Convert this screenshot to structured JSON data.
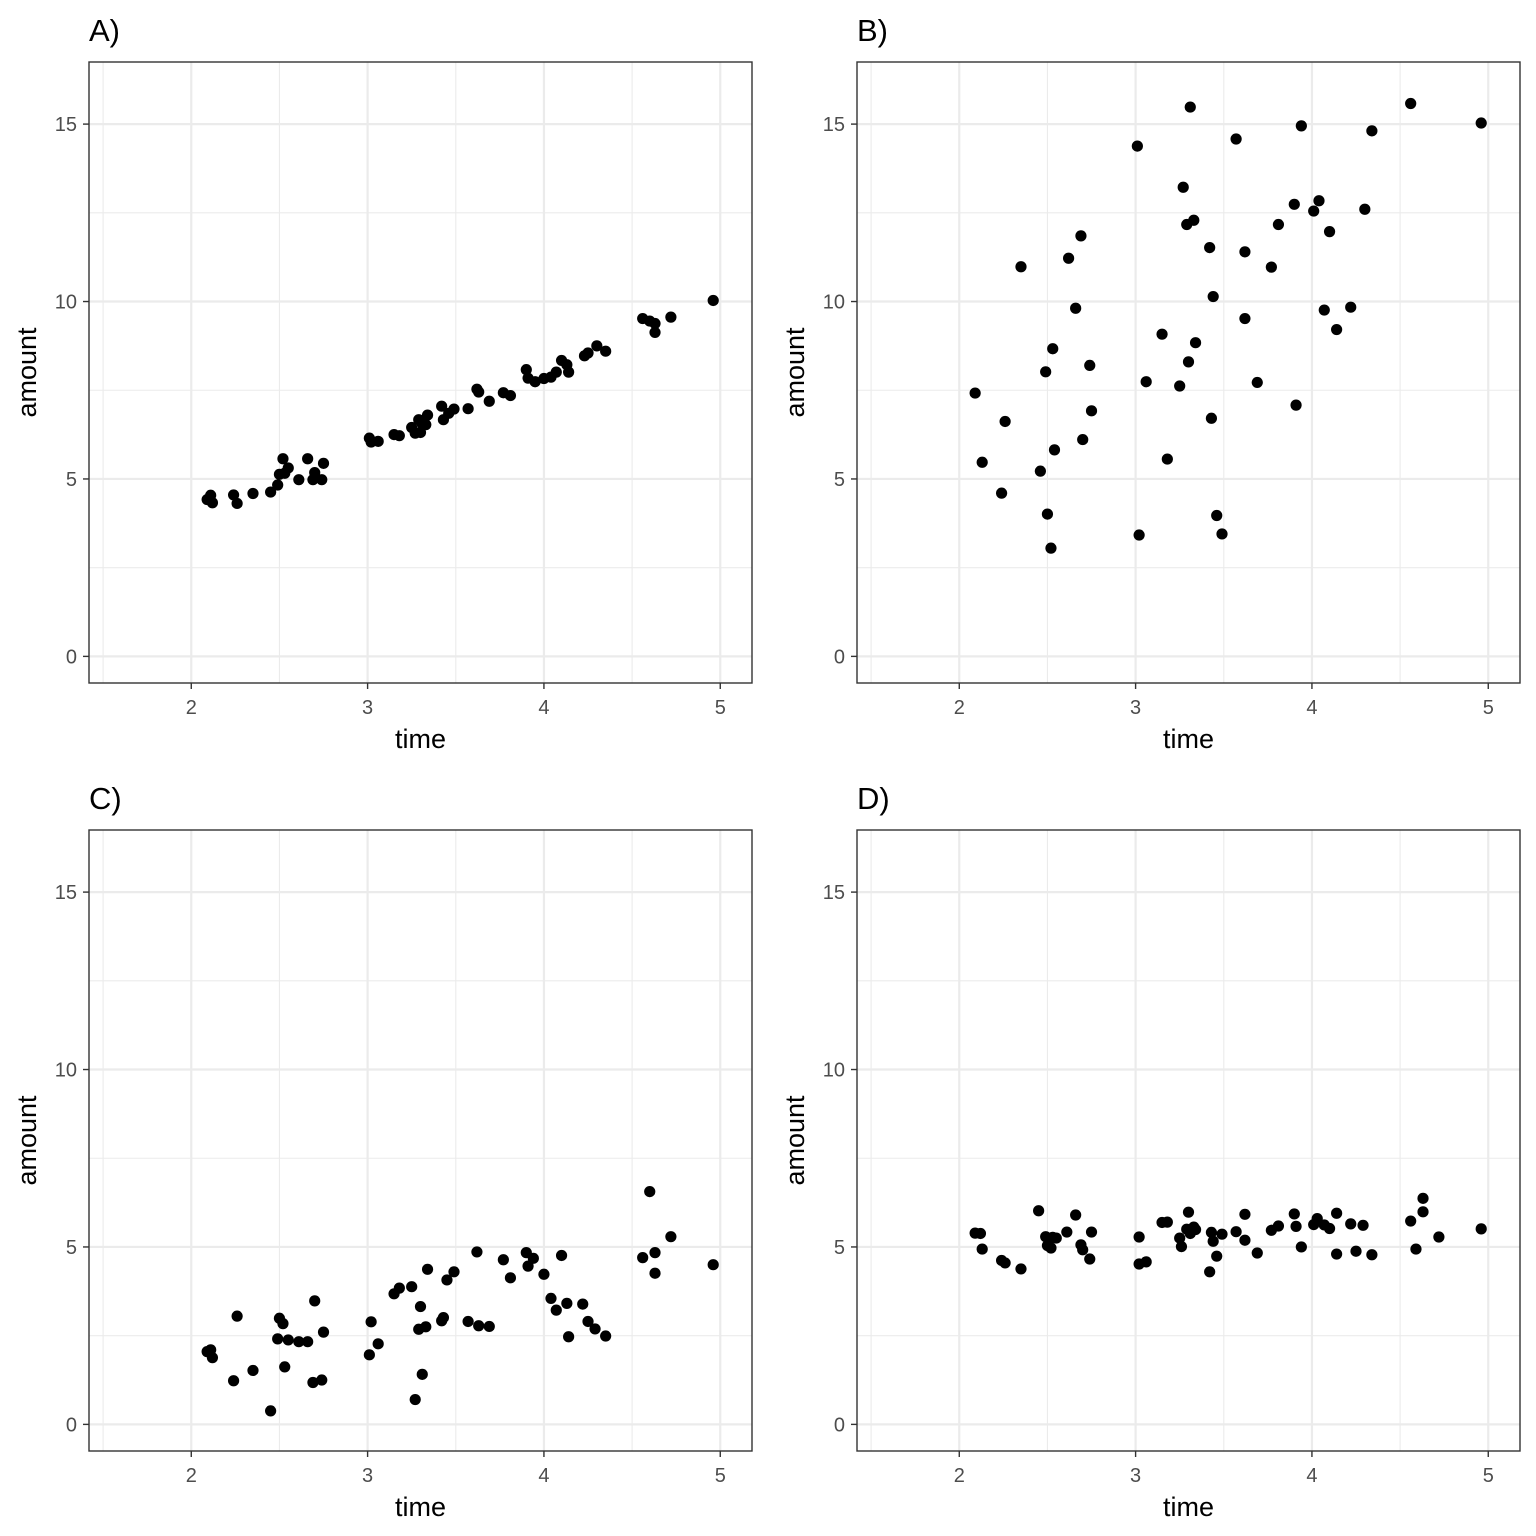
{
  "chart_data": [
    {
      "type": "scatter",
      "title": "A)",
      "xlabel": "time",
      "ylabel": "amount",
      "xlim": [
        1.42,
        5.18
      ],
      "ylim": [
        -0.75,
        16.75
      ],
      "xticks": [
        2,
        3,
        4,
        5
      ],
      "yticks": [
        0,
        5,
        10,
        15
      ],
      "grid": true,
      "points": [
        [
          2.09,
          4.42
        ],
        [
          2.11,
          4.54
        ],
        [
          2.12,
          4.33
        ],
        [
          2.24,
          4.55
        ],
        [
          2.26,
          4.31
        ],
        [
          2.35,
          4.59
        ],
        [
          2.45,
          4.63
        ],
        [
          2.49,
          4.83
        ],
        [
          2.5,
          5.13
        ],
        [
          2.52,
          5.57
        ],
        [
          2.53,
          5.16
        ],
        [
          2.55,
          5.31
        ],
        [
          2.61,
          4.98
        ],
        [
          2.66,
          5.57
        ],
        [
          2.69,
          4.98
        ],
        [
          2.7,
          5.18
        ],
        [
          2.74,
          4.98
        ],
        [
          2.75,
          5.44
        ],
        [
          3.01,
          6.15
        ],
        [
          3.02,
          6.04
        ],
        [
          3.06,
          6.06
        ],
        [
          3.15,
          6.25
        ],
        [
          3.18,
          6.22
        ],
        [
          3.25,
          6.45
        ],
        [
          3.27,
          6.29
        ],
        [
          3.29,
          6.67
        ],
        [
          3.3,
          6.31
        ],
        [
          3.31,
          6.55
        ],
        [
          3.33,
          6.53
        ],
        [
          3.34,
          6.8
        ],
        [
          3.42,
          7.05
        ],
        [
          3.43,
          6.67
        ],
        [
          3.46,
          6.85
        ],
        [
          3.49,
          6.97
        ],
        [
          3.57,
          6.98
        ],
        [
          3.62,
          7.53
        ],
        [
          3.63,
          7.45
        ],
        [
          3.69,
          7.19
        ],
        [
          3.77,
          7.43
        ],
        [
          3.81,
          7.35
        ],
        [
          3.9,
          8.08
        ],
        [
          3.91,
          7.84
        ],
        [
          3.95,
          7.74
        ],
        [
          4.0,
          7.83
        ],
        [
          4.04,
          7.87
        ],
        [
          4.07,
          8.01
        ],
        [
          4.1,
          8.34
        ],
        [
          4.13,
          8.22
        ],
        [
          4.14,
          8.01
        ],
        [
          4.23,
          8.47
        ],
        [
          4.25,
          8.55
        ],
        [
          4.3,
          8.75
        ],
        [
          4.35,
          8.6
        ],
        [
          4.56,
          9.52
        ],
        [
          4.6,
          9.45
        ],
        [
          4.63,
          9.38
        ],
        [
          4.63,
          9.13
        ],
        [
          4.72,
          9.56
        ],
        [
          4.96,
          10.03
        ]
      ]
    },
    {
      "type": "scatter",
      "title": "B)",
      "xlabel": "time",
      "ylabel": "amount",
      "xlim": [
        1.42,
        5.18
      ],
      "ylim": [
        -0.75,
        16.75
      ],
      "xticks": [
        2,
        3,
        4,
        5
      ],
      "yticks": [
        0,
        5,
        10,
        15
      ],
      "grid": true,
      "points": [
        [
          2.09,
          7.42
        ],
        [
          2.13,
          5.47
        ],
        [
          2.24,
          4.6
        ],
        [
          2.26,
          6.62
        ],
        [
          2.35,
          10.98
        ],
        [
          2.46,
          5.22
        ],
        [
          2.49,
          8.02
        ],
        [
          2.5,
          4.01
        ],
        [
          2.52,
          3.05
        ],
        [
          2.53,
          8.67
        ],
        [
          2.54,
          5.82
        ],
        [
          2.62,
          11.22
        ],
        [
          2.66,
          9.81
        ],
        [
          2.69,
          11.85
        ],
        [
          2.7,
          6.11
        ],
        [
          2.74,
          8.2
        ],
        [
          2.75,
          6.92
        ],
        [
          3.01,
          14.38
        ],
        [
          3.02,
          3.42
        ],
        [
          3.06,
          7.74
        ],
        [
          3.15,
          9.08
        ],
        [
          3.18,
          5.56
        ],
        [
          3.25,
          7.62
        ],
        [
          3.27,
          13.22
        ],
        [
          3.29,
          12.17
        ],
        [
          3.3,
          8.3
        ],
        [
          3.31,
          15.48
        ],
        [
          3.33,
          12.29
        ],
        [
          3.34,
          8.84
        ],
        [
          3.42,
          11.52
        ],
        [
          3.43,
          6.71
        ],
        [
          3.44,
          10.14
        ],
        [
          3.46,
          3.97
        ],
        [
          3.49,
          3.45
        ],
        [
          3.57,
          14.58
        ],
        [
          3.62,
          11.4
        ],
        [
          3.62,
          9.52
        ],
        [
          3.69,
          7.72
        ],
        [
          3.77,
          10.97
        ],
        [
          3.81,
          12.17
        ],
        [
          3.9,
          12.74
        ],
        [
          3.91,
          7.08
        ],
        [
          3.94,
          14.95
        ],
        [
          4.01,
          12.55
        ],
        [
          4.04,
          12.84
        ],
        [
          4.07,
          9.76
        ],
        [
          4.1,
          11.97
        ],
        [
          4.14,
          9.21
        ],
        [
          4.22,
          9.84
        ],
        [
          4.3,
          12.6
        ],
        [
          4.34,
          14.81
        ],
        [
          4.56,
          15.58
        ],
        [
          4.96,
          15.03
        ]
      ]
    },
    {
      "type": "scatter",
      "title": "C)",
      "xlabel": "time",
      "ylabel": "amount",
      "xlim": [
        1.42,
        5.18
      ],
      "ylim": [
        -0.75,
        16.75
      ],
      "xticks": [
        2,
        3,
        4,
        5
      ],
      "yticks": [
        0,
        5,
        10,
        15
      ],
      "grid": true,
      "points": [
        [
          2.09,
          2.05
        ],
        [
          2.11,
          2.1
        ],
        [
          2.12,
          1.88
        ],
        [
          2.24,
          1.23
        ],
        [
          2.26,
          3.05
        ],
        [
          2.35,
          1.52
        ],
        [
          2.45,
          0.38
        ],
        [
          2.49,
          2.41
        ],
        [
          2.5,
          2.99
        ],
        [
          2.52,
          2.84
        ],
        [
          2.53,
          1.62
        ],
        [
          2.55,
          2.38
        ],
        [
          2.61,
          2.33
        ],
        [
          2.66,
          2.33
        ],
        [
          2.69,
          1.18
        ],
        [
          2.7,
          3.48
        ],
        [
          2.74,
          1.25
        ],
        [
          2.75,
          2.6
        ],
        [
          3.01,
          1.96
        ],
        [
          3.02,
          2.89
        ],
        [
          3.06,
          2.27
        ],
        [
          3.15,
          3.68
        ],
        [
          3.18,
          3.84
        ],
        [
          3.25,
          3.88
        ],
        [
          3.27,
          0.7
        ],
        [
          3.29,
          2.68
        ],
        [
          3.3,
          3.32
        ],
        [
          3.31,
          1.41
        ],
        [
          3.33,
          2.75
        ],
        [
          3.34,
          4.37
        ],
        [
          3.42,
          2.92
        ],
        [
          3.43,
          3.01
        ],
        [
          3.45,
          4.07
        ],
        [
          3.49,
          4.3
        ],
        [
          3.57,
          2.9
        ],
        [
          3.62,
          4.86
        ],
        [
          3.63,
          2.78
        ],
        [
          3.69,
          2.76
        ],
        [
          3.77,
          4.64
        ],
        [
          3.81,
          4.13
        ],
        [
          3.9,
          4.84
        ],
        [
          3.91,
          4.46
        ],
        [
          3.94,
          4.68
        ],
        [
          4.0,
          4.23
        ],
        [
          4.04,
          3.55
        ],
        [
          4.07,
          3.22
        ],
        [
          4.1,
          4.76
        ],
        [
          4.13,
          3.41
        ],
        [
          4.14,
          2.47
        ],
        [
          4.22,
          3.39
        ],
        [
          4.25,
          2.9
        ],
        [
          4.29,
          2.69
        ],
        [
          4.35,
          2.49
        ],
        [
          4.56,
          4.7
        ],
        [
          4.6,
          6.56
        ],
        [
          4.63,
          4.84
        ],
        [
          4.63,
          4.26
        ],
        [
          4.72,
          5.29
        ],
        [
          4.96,
          4.5
        ]
      ]
    },
    {
      "type": "scatter",
      "title": "D)",
      "xlabel": "time",
      "ylabel": "amount",
      "xlim": [
        1.42,
        5.18
      ],
      "ylim": [
        -0.75,
        16.75
      ],
      "xticks": [
        2,
        3,
        4,
        5
      ],
      "yticks": [
        0,
        5,
        10,
        15
      ],
      "grid": true,
      "points": [
        [
          2.09,
          5.39
        ],
        [
          2.12,
          5.38
        ],
        [
          2.13,
          4.94
        ],
        [
          2.24,
          4.62
        ],
        [
          2.26,
          4.55
        ],
        [
          2.35,
          4.38
        ],
        [
          2.45,
          6.02
        ],
        [
          2.49,
          5.29
        ],
        [
          2.5,
          5.04
        ],
        [
          2.52,
          4.97
        ],
        [
          2.53,
          5.27
        ],
        [
          2.55,
          5.25
        ],
        [
          2.61,
          5.42
        ],
        [
          2.66,
          5.9
        ],
        [
          2.69,
          5.06
        ],
        [
          2.7,
          4.92
        ],
        [
          2.74,
          4.66
        ],
        [
          2.75,
          5.42
        ],
        [
          3.02,
          5.28
        ],
        [
          3.02,
          4.52
        ],
        [
          3.06,
          4.58
        ],
        [
          3.15,
          5.69
        ],
        [
          3.18,
          5.7
        ],
        [
          3.25,
          5.25
        ],
        [
          3.26,
          5.01
        ],
        [
          3.29,
          5.5
        ],
        [
          3.3,
          5.98
        ],
        [
          3.31,
          5.38
        ],
        [
          3.33,
          5.56
        ],
        [
          3.34,
          5.49
        ],
        [
          3.42,
          4.3
        ],
        [
          3.43,
          5.41
        ],
        [
          3.44,
          5.16
        ],
        [
          3.46,
          4.74
        ],
        [
          3.49,
          5.36
        ],
        [
          3.57,
          5.43
        ],
        [
          3.62,
          5.92
        ],
        [
          3.62,
          5.19
        ],
        [
          3.69,
          4.83
        ],
        [
          3.77,
          5.47
        ],
        [
          3.81,
          5.59
        ],
        [
          3.9,
          5.93
        ],
        [
          3.91,
          5.58
        ],
        [
          3.94,
          5.0
        ],
        [
          4.01,
          5.63
        ],
        [
          4.03,
          5.8
        ],
        [
          4.07,
          5.62
        ],
        [
          4.1,
          5.52
        ],
        [
          4.14,
          5.95
        ],
        [
          4.14,
          4.8
        ],
        [
          4.22,
          5.65
        ],
        [
          4.25,
          4.88
        ],
        [
          4.29,
          5.61
        ],
        [
          4.34,
          4.78
        ],
        [
          4.56,
          5.73
        ],
        [
          4.59,
          4.94
        ],
        [
          4.63,
          6.37
        ],
        [
          4.63,
          5.99
        ],
        [
          4.72,
          5.28
        ],
        [
          4.96,
          5.51
        ]
      ]
    }
  ]
}
